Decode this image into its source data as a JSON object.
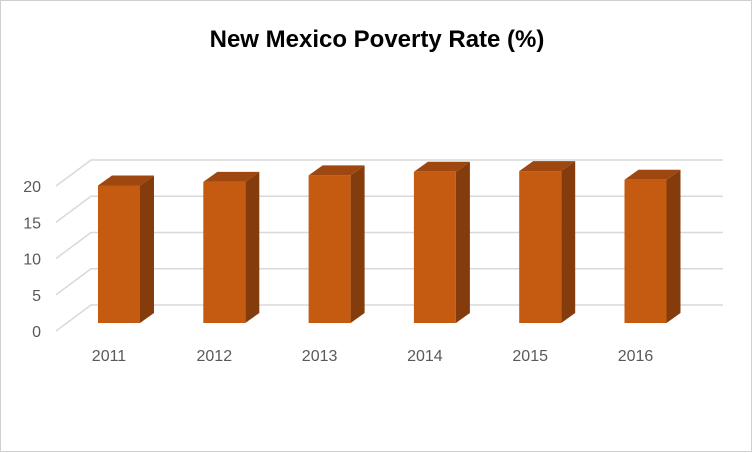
{
  "chart_data": {
    "type": "bar",
    "title": "New Mexico Poverty Rate (%)",
    "categories": [
      "2011",
      "2012",
      "2013",
      "2014",
      "2015",
      "2016"
    ],
    "values": [
      19.1,
      19.6,
      20.5,
      21.0,
      21.1,
      19.9
    ],
    "xlabel": "",
    "ylabel": "",
    "ylim": [
      0,
      20
    ],
    "yticks": [
      "0",
      "5",
      "10",
      "15",
      "20"
    ],
    "grid": true,
    "style": "3d-column",
    "colors": {
      "front": "#C55A11",
      "side": "#843C0C",
      "top": "#9E4710",
      "grid": "#D9D9D9"
    }
  }
}
